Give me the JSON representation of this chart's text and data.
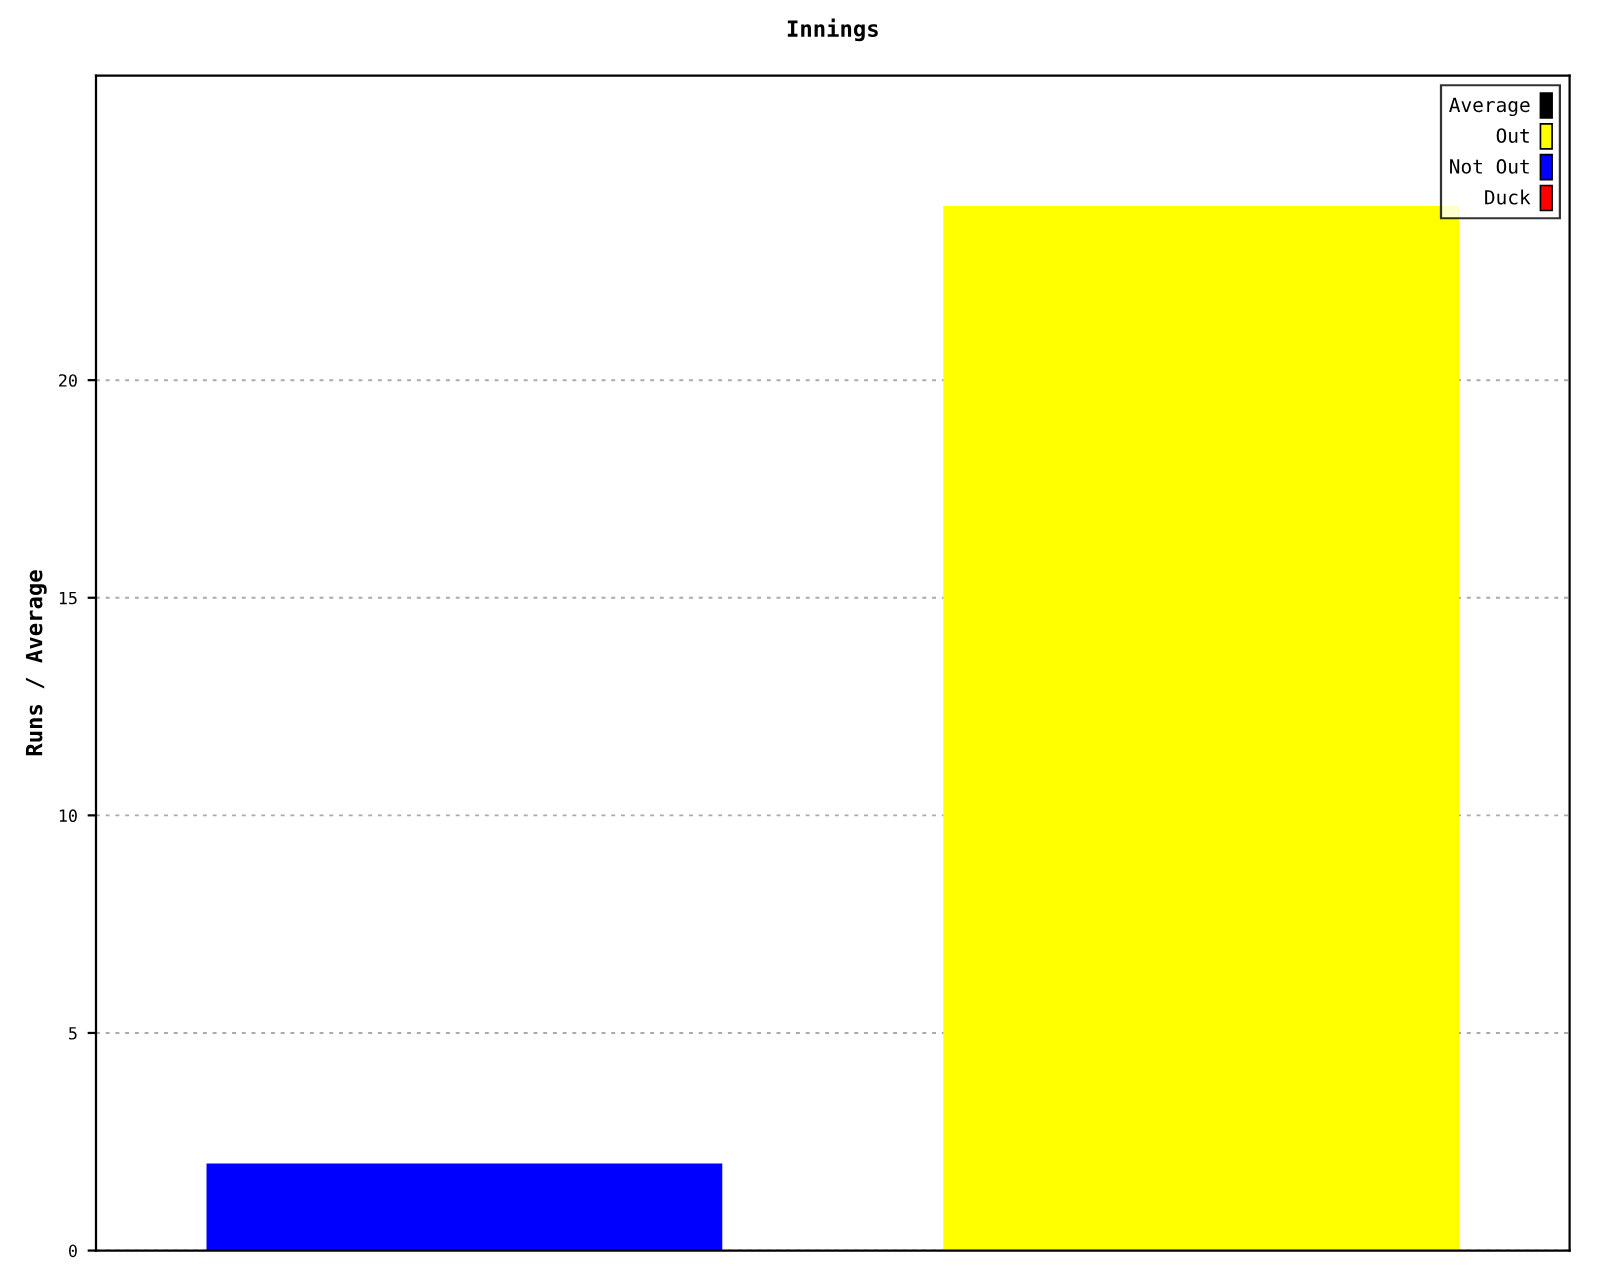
{
  "chart_data": {
    "type": "bar",
    "title": "Innings",
    "ylabel": "Runs / Average",
    "categories": [
      null,
      null
    ],
    "stacked": true,
    "series": [
      {
        "name": "Average",
        "color": "#000000",
        "values": [
          null,
          null
        ]
      },
      {
        "name": "Out",
        "color": "#ffff00",
        "values": [
          null,
          24
        ]
      },
      {
        "name": "Not Out",
        "color": "#0000ff",
        "values": [
          2,
          null
        ]
      },
      {
        "name": "Duck",
        "color": "#ff0000",
        "values": [
          null,
          null
        ]
      }
    ],
    "ylim": [
      0,
      27
    ],
    "yticks": [
      0,
      5,
      10,
      15,
      20
    ],
    "grid": "y",
    "legend": "top right"
  }
}
